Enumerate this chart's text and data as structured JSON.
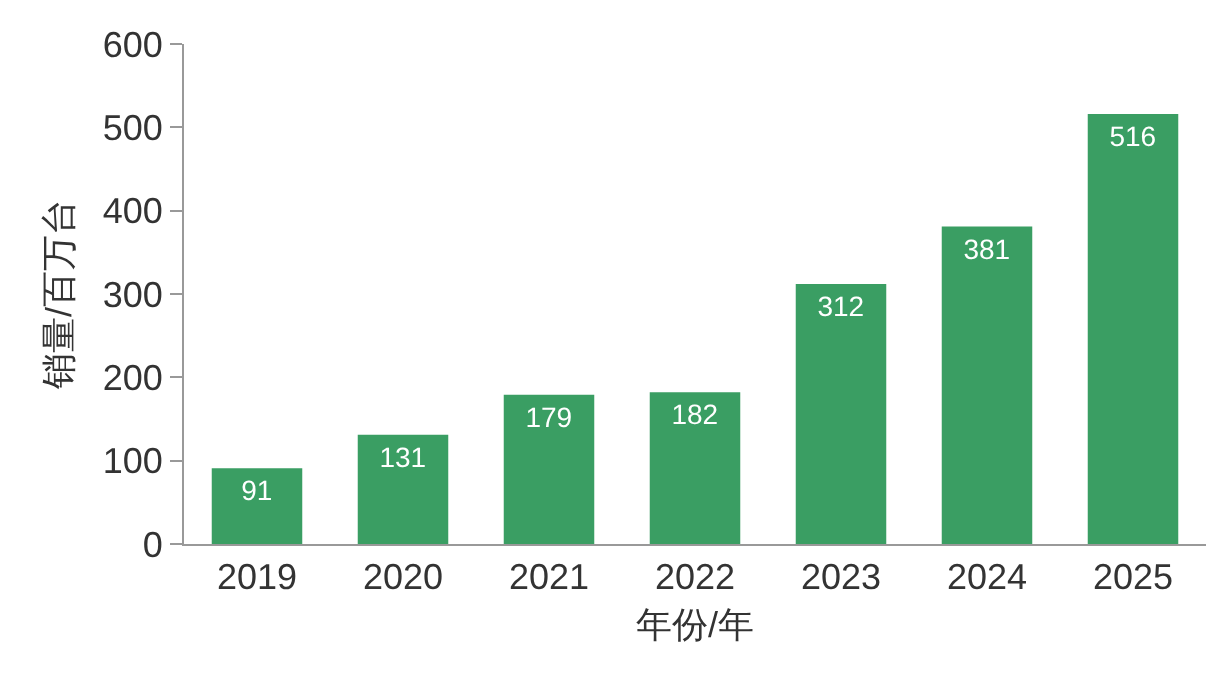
{
  "chart_data": {
    "type": "bar",
    "xlabel": "年份/年",
    "ylabel": "销量/百万台",
    "categories": [
      "2019",
      "2020",
      "2021",
      "2022",
      "2023",
      "2024",
      "2025"
    ],
    "values": [
      91,
      131,
      179,
      182,
      312,
      381,
      516
    ],
    "color": "#3a9e63",
    "ylim": [
      0,
      600
    ],
    "yticks": [
      0,
      100,
      200,
      300,
      400,
      500,
      600
    ],
    "grid": false,
    "legend": false,
    "data_labels": true
  }
}
